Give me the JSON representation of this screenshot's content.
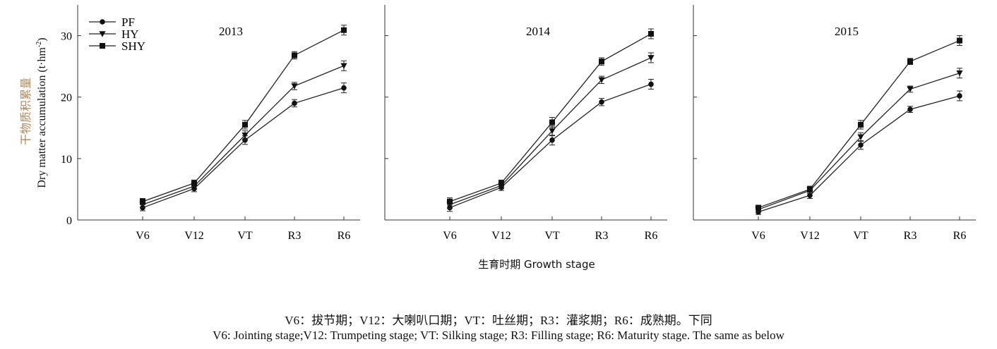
{
  "figure": {
    "ylabel_cn": "干物质积累量",
    "ylabel_en": "Dry matter accumulation (t·hm",
    "ylabel_sup": "-2",
    "ylabel_end": ")",
    "xlabel": "生育时期 Growth stage"
  },
  "legend": [
    {
      "name": "PF",
      "marker": "circle"
    },
    {
      "name": "HY",
      "marker": "triangle-down"
    },
    {
      "name": "SHY",
      "marker": "square"
    }
  ],
  "chart_data": [
    {
      "type": "line",
      "title": "2013",
      "categories": [
        "V6",
        "V12",
        "VT",
        "R3",
        "R6"
      ],
      "ylim": [
        0,
        35
      ],
      "yticks": [
        0,
        10,
        20,
        30
      ],
      "legend_position": "top-left",
      "grid": false,
      "series": [
        {
          "name": "PF",
          "marker": "circle",
          "values": [
            2.0,
            5.1,
            13.0,
            19.0,
            21.5
          ],
          "errors": [
            0.5,
            0.5,
            0.7,
            0.6,
            0.8
          ]
        },
        {
          "name": "HY",
          "marker": "triangle-down",
          "values": [
            2.5,
            5.5,
            13.8,
            21.8,
            25.1
          ],
          "errors": [
            0.5,
            0.5,
            0.7,
            0.6,
            0.8
          ]
        },
        {
          "name": "SHY",
          "marker": "square",
          "values": [
            3.0,
            6.0,
            15.5,
            26.8,
            30.9
          ],
          "errors": [
            0.5,
            0.5,
            0.7,
            0.6,
            0.8
          ]
        }
      ]
    },
    {
      "type": "line",
      "title": "2014",
      "categories": [
        "V6",
        "V12",
        "VT",
        "R3",
        "R6"
      ],
      "ylim": [
        0,
        35
      ],
      "yticks": [
        0,
        10,
        20,
        30
      ],
      "grid": false,
      "series": [
        {
          "name": "PF",
          "marker": "circle",
          "values": [
            2.0,
            5.3,
            13.0,
            19.2,
            22.1
          ],
          "errors": [
            0.6,
            0.5,
            0.8,
            0.6,
            0.8
          ]
        },
        {
          "name": "HY",
          "marker": "triangle-down",
          "values": [
            2.5,
            5.6,
            14.5,
            22.8,
            26.4
          ],
          "errors": [
            0.6,
            0.5,
            0.8,
            0.6,
            0.8
          ]
        },
        {
          "name": "SHY",
          "marker": "square",
          "values": [
            3.0,
            6.0,
            15.9,
            25.8,
            30.3
          ],
          "errors": [
            0.6,
            0.5,
            0.8,
            0.6,
            0.8
          ]
        }
      ]
    },
    {
      "type": "line",
      "title": "2015",
      "categories": [
        "V6",
        "V12",
        "VT",
        "R3",
        "R6"
      ],
      "ylim": [
        0,
        35
      ],
      "yticks": [
        0,
        10,
        20,
        30
      ],
      "grid": false,
      "series": [
        {
          "name": "PF",
          "marker": "circle",
          "values": [
            1.3,
            4.0,
            12.2,
            18.0,
            20.2
          ],
          "errors": [
            0.4,
            0.5,
            0.7,
            0.5,
            0.8
          ]
        },
        {
          "name": "HY",
          "marker": "triangle-down",
          "values": [
            1.7,
            4.8,
            13.5,
            21.3,
            23.9
          ],
          "errors": [
            0.4,
            0.5,
            0.7,
            0.5,
            0.8
          ]
        },
        {
          "name": "SHY",
          "marker": "square",
          "values": [
            2.0,
            5.0,
            15.5,
            25.8,
            29.2
          ],
          "errors": [
            0.4,
            0.5,
            0.7,
            0.5,
            0.8
          ]
        }
      ]
    }
  ],
  "caption": {
    "cn": "V6：拔节期；V12：大喇叭口期；VT：吐丝期；R3：灌浆期；R6：成熟期。下同",
    "en": "V6: Jointing stage;V12: Trumpeting stage; VT: Silking stage; R3: Filling stage; R6: Maturity stage. The same as below"
  }
}
